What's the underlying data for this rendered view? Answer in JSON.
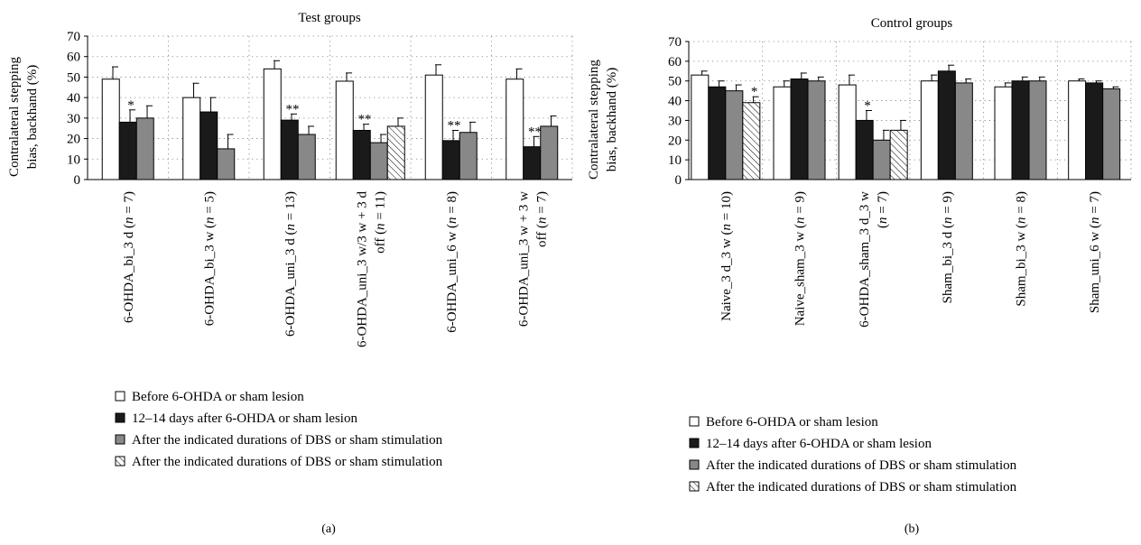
{
  "colors": {
    "white": "#ffffff",
    "black": "#1a1a1a",
    "gray": "#888888",
    "hatched": "#ffffff"
  },
  "legend": [
    {
      "key": "s0",
      "label": "Before 6-OHDA or sham lesion",
      "fill": "white"
    },
    {
      "key": "s1",
      "label": "12–14 days after 6-OHDA or sham lesion",
      "fill": "black"
    },
    {
      "key": "s2",
      "label": "After the indicated durations of DBS or sham stimulation",
      "fill": "gray"
    },
    {
      "key": "s3",
      "label": "After the indicated durations of DBS or sham stimulation",
      "fill": "hatched"
    }
  ],
  "chart_data": [
    {
      "type": "bar",
      "panel_label": "(a)",
      "title": "Test groups",
      "ylabel": [
        "Contralateral stepping",
        "bias, backhand (%)"
      ],
      "ylim": [
        0,
        70
      ],
      "yticks": [
        "0",
        "10",
        "20",
        "30",
        "40",
        "50",
        "60",
        "70"
      ],
      "grid": true,
      "legend_position": "bottom",
      "groups": [
        {
          "label": [
            "6-OHDA_bi_3 d (n = 7)"
          ],
          "bars": [
            {
              "series": "s0",
              "value": 49,
              "err": 6
            },
            {
              "series": "s1",
              "value": 28,
              "err": 6,
              "sig": "*"
            },
            {
              "series": "s2",
              "value": 30,
              "err": 6
            }
          ]
        },
        {
          "label": [
            "6-OHDA_bi_3 w (n = 5)"
          ],
          "bars": [
            {
              "series": "s0",
              "value": 40,
              "err": 7
            },
            {
              "series": "s1",
              "value": 33,
              "err": 7
            },
            {
              "series": "s2",
              "value": 15,
              "err": 7
            }
          ]
        },
        {
          "label": [
            "6-OHDA_uni_3 d (n = 13)"
          ],
          "bars": [
            {
              "series": "s0",
              "value": 54,
              "err": 4
            },
            {
              "series": "s1",
              "value": 29,
              "err": 3,
              "sig": "**"
            },
            {
              "series": "s2",
              "value": 22,
              "err": 4
            }
          ]
        },
        {
          "label": [
            "6-OHDA_uni_3 w/3 w + 3 d",
            "off (n = 11)"
          ],
          "bars": [
            {
              "series": "s0",
              "value": 48,
              "err": 4
            },
            {
              "series": "s1",
              "value": 24,
              "err": 3,
              "sig": "**"
            },
            {
              "series": "s2",
              "value": 18,
              "err": 4
            },
            {
              "series": "s3",
              "value": 26,
              "err": 4
            }
          ]
        },
        {
          "label": [
            "6-OHDA_uni_6 w (n = 8)"
          ],
          "bars": [
            {
              "series": "s0",
              "value": 51,
              "err": 5
            },
            {
              "series": "s1",
              "value": 19,
              "err": 5,
              "sig": "**"
            },
            {
              "series": "s2",
              "value": 23,
              "err": 5
            }
          ]
        },
        {
          "label": [
            "6-OHDA_uni_3 w + 3 w",
            "off (n = 7)"
          ],
          "bars": [
            {
              "series": "s0",
              "value": 49,
              "err": 5
            },
            {
              "series": "s1",
              "value": 16,
              "err": 5,
              "sig": "**"
            },
            {
              "series": "s2",
              "value": 26,
              "err": 5
            }
          ]
        }
      ]
    },
    {
      "type": "bar",
      "panel_label": "(b)",
      "title": "Control groups",
      "ylabel": [
        "Contralateral stepping",
        "bias, backhand (%)"
      ],
      "ylim": [
        0,
        70
      ],
      "yticks": [
        "0",
        "10",
        "20",
        "30",
        "40",
        "50",
        "60",
        "70"
      ],
      "grid": true,
      "legend_position": "bottom",
      "groups": [
        {
          "label": [
            "Naive_3 d_3 w (n = 10)"
          ],
          "bars": [
            {
              "series": "s0",
              "value": 53,
              "err": 2
            },
            {
              "series": "s1",
              "value": 47,
              "err": 3
            },
            {
              "series": "s2",
              "value": 45,
              "err": 3
            },
            {
              "series": "s3",
              "value": 39,
              "err": 3,
              "sig": "*"
            }
          ]
        },
        {
          "label": [
            "Naive_sham_3 w (n = 9)"
          ],
          "bars": [
            {
              "series": "s0",
              "value": 47,
              "err": 3
            },
            {
              "series": "s1",
              "value": 51,
              "err": 3
            },
            {
              "series": "s2",
              "value": 50,
              "err": 2
            }
          ]
        },
        {
          "label": [
            "6-OHDA_sham_3 d_3 w",
            "(n = 7)"
          ],
          "bars": [
            {
              "series": "s0",
              "value": 48,
              "err": 5
            },
            {
              "series": "s1",
              "value": 30,
              "err": 5,
              "sig": "*"
            },
            {
              "series": "s2",
              "value": 20,
              "err": 5
            },
            {
              "series": "s3",
              "value": 25,
              "err": 5
            }
          ]
        },
        {
          "label": [
            "Sham_bi_3 d (n = 9)"
          ],
          "bars": [
            {
              "series": "s0",
              "value": 50,
              "err": 3
            },
            {
              "series": "s1",
              "value": 55,
              "err": 3
            },
            {
              "series": "s2",
              "value": 49,
              "err": 2
            }
          ]
        },
        {
          "label": [
            "Sham_bi_3 w (n = 8)"
          ],
          "bars": [
            {
              "series": "s0",
              "value": 47,
              "err": 2
            },
            {
              "series": "s1",
              "value": 50,
              "err": 2
            },
            {
              "series": "s2",
              "value": 50,
              "err": 2
            }
          ]
        },
        {
          "label": [
            "Sham_uni_6 w (n = 7)"
          ],
          "bars": [
            {
              "series": "s0",
              "value": 50,
              "err": 1
            },
            {
              "series": "s1",
              "value": 49,
              "err": 1
            },
            {
              "series": "s2",
              "value": 46,
              "err": 1
            }
          ]
        }
      ]
    }
  ]
}
